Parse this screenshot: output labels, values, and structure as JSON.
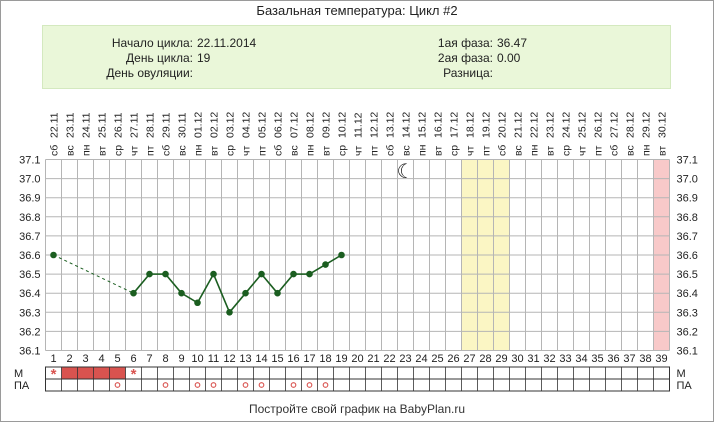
{
  "title": "Базальная температура: Цикл #2",
  "info": {
    "cycle_start_label": "Начало цикла:",
    "cycle_start_value": "22.11.2014",
    "cycle_day_label": "День цикла:",
    "cycle_day_value": "19",
    "ovulation_day_label": "День овуляции:",
    "ovulation_day_value": "",
    "phase1_label": "1ая фаза:",
    "phase1_value": "36.47",
    "phase2_label": "2ая фаза:",
    "phase2_value": "0.00",
    "difference_label": "Разница:",
    "difference_value": ""
  },
  "footer": "Постройте свой график на BabyPlan.ru",
  "chart_data": {
    "type": "line",
    "dates": [
      "22.11",
      "23.11",
      "24.11",
      "25.11",
      "26.11",
      "27.11",
      "28.11",
      "29.11",
      "30.11",
      "01.12",
      "02.12",
      "03.12",
      "04.12",
      "05.12",
      "06.12",
      "07.12",
      "08.12",
      "09.12",
      "10.12",
      "11.12",
      "12.12",
      "13.12",
      "14.12",
      "15.12",
      "16.12",
      "17.12",
      "18.12",
      "19.12",
      "20.12",
      "21.12",
      "22.12",
      "23.12",
      "24.12",
      "25.12",
      "26.12",
      "27.12",
      "28.12",
      "29.12",
      "30.12"
    ],
    "weekdays": [
      "сб",
      "вс",
      "пн",
      "вт",
      "ср",
      "чт",
      "пт",
      "сб",
      "вс",
      "пн",
      "вт",
      "ср",
      "чт",
      "пт",
      "сб",
      "вс",
      "пн",
      "вт",
      "ср",
      "чт",
      "пт",
      "сб",
      "вс",
      "пн",
      "вт",
      "ср",
      "чт",
      "пт",
      "сб",
      "вс",
      "пн",
      "вт",
      "ср",
      "чт",
      "пт",
      "сб",
      "вс",
      "пн",
      "вт"
    ],
    "days": [
      1,
      2,
      3,
      4,
      5,
      6,
      7,
      8,
      9,
      10,
      11,
      12,
      13,
      14,
      15,
      16,
      17,
      18,
      19,
      20,
      21,
      22,
      23,
      24,
      25,
      26,
      27,
      28,
      29,
      30,
      31,
      32,
      33,
      34,
      35,
      36,
      37,
      38,
      39
    ],
    "y_ticks": [
      "37.1",
      "37.0",
      "36.9",
      "36.8",
      "36.7",
      "36.6",
      "36.5",
      "36.4",
      "36.3",
      "36.2",
      "36.1"
    ],
    "ylim": [
      36.1,
      37.1
    ],
    "series": [
      {
        "values": [
          {
            "day": 1,
            "temp": 36.6
          },
          {
            "day": 6,
            "temp": 36.4
          },
          {
            "day": 7,
            "temp": 36.5
          },
          {
            "day": 8,
            "temp": 36.5
          },
          {
            "day": 9,
            "temp": 36.4
          },
          {
            "day": 10,
            "temp": 36.35
          },
          {
            "day": 11,
            "temp": 36.5
          },
          {
            "day": 12,
            "temp": 36.3
          },
          {
            "day": 13,
            "temp": 36.4
          },
          {
            "day": 14,
            "temp": 36.5
          },
          {
            "day": 15,
            "temp": 36.4
          },
          {
            "day": 16,
            "temp": 36.5
          },
          {
            "day": 17,
            "temp": 36.5
          },
          {
            "day": 18,
            "temp": 36.55
          },
          {
            "day": 19,
            "temp": 36.6
          }
        ],
        "gap_dashed_between_days": [
          1,
          6
        ],
        "color": "#1b5e20"
      }
    ],
    "highlight_yellow_days": [
      27,
      28,
      29
    ],
    "highlight_pink_days": [
      39
    ],
    "moon_day": 23,
    "moon_symbol": "☾",
    "row_m_label": "М",
    "row_pa_label": "ПА",
    "menstruation_days": [
      2,
      3,
      4,
      5
    ],
    "menstruation_color": "#d9534f",
    "star_days": [
      1,
      6
    ],
    "star_symbol": "*",
    "pa_days": [
      5,
      8,
      10,
      11,
      13,
      14,
      16,
      17,
      18
    ],
    "pa_symbol": "o",
    "grid": true,
    "colors": {
      "grid": "#b5b5b5",
      "line": "#1b5e20",
      "yellow_band": "#fbf6c4",
      "pink_band": "#f8c9c9",
      "marker_red": "#d9534f"
    }
  }
}
